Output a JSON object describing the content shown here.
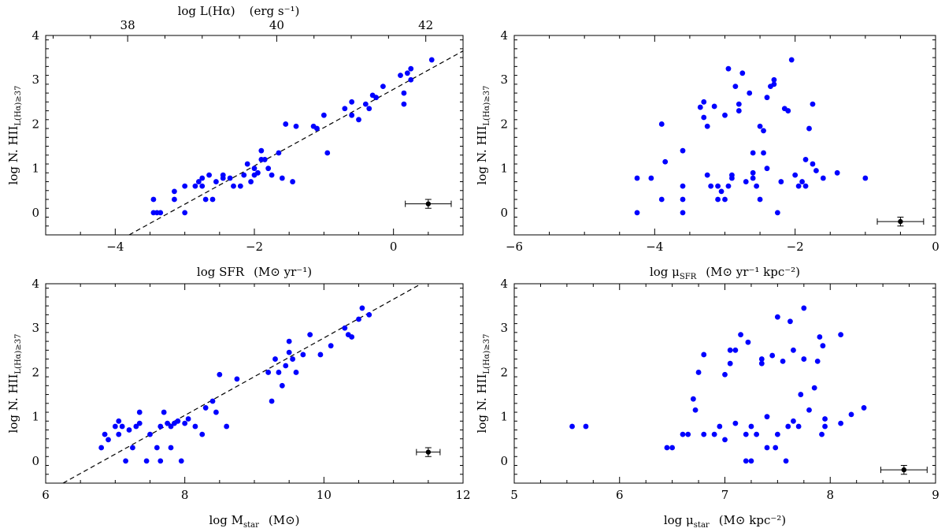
{
  "chart_data": [
    {
      "type": "scatter",
      "xlabel": "log SFR",
      "xlabel_unit": "(M⊙ yr⁻¹)",
      "ylabel": "log N. HII",
      "ylabel_sub": "L(Hα)≥37",
      "xlim": [
        -5,
        1
      ],
      "ylim": [
        -0.5,
        4
      ],
      "xticks": [
        -4,
        -2,
        0
      ],
      "yticks": [
        0,
        1,
        2,
        3,
        4
      ],
      "top_axis": {
        "label": "log L(Hα)",
        "unit": "(erg s⁻¹)",
        "lim": [
          36.9,
          42.5
        ],
        "ticks": [
          38,
          40,
          42
        ]
      },
      "fit_line": {
        "x": [
          -3.8,
          1
        ],
        "y": [
          -0.5,
          3.65
        ]
      },
      "error_bar": {
        "x": 0.5,
        "y": 0.2,
        "xerr": 0.33,
        "yerr": 0.1
      },
      "points": [
        [
          -3.45,
          0
        ],
        [
          -3.4,
          0
        ],
        [
          -3.35,
          0
        ],
        [
          -3.45,
          0.3
        ],
        [
          -3.15,
          0.3
        ],
        [
          -3.15,
          0.48
        ],
        [
          -3.0,
          0
        ],
        [
          -3.0,
          0.6
        ],
        [
          -2.85,
          0.6
        ],
        [
          -2.8,
          0.7
        ],
        [
          -2.75,
          0.6
        ],
        [
          -2.7,
          0.3
        ],
        [
          -2.75,
          0.78
        ],
        [
          -2.65,
          0.85
        ],
        [
          -2.6,
          0.3
        ],
        [
          -2.55,
          0.7
        ],
        [
          -2.45,
          0.78
        ],
        [
          -2.45,
          0.85
        ],
        [
          -2.35,
          0.78
        ],
        [
          -2.3,
          0.6
        ],
        [
          -2.2,
          0.6
        ],
        [
          -2.15,
          0.85
        ],
        [
          -2.1,
          1.1
        ],
        [
          -2.05,
          0.7
        ],
        [
          -2.0,
          0.85
        ],
        [
          -2.0,
          1.0
        ],
        [
          -1.95,
          0.9
        ],
        [
          -1.9,
          1.2
        ],
        [
          -1.9,
          1.4
        ],
        [
          -1.85,
          1.2
        ],
        [
          -1.8,
          1.0
        ],
        [
          -1.75,
          0.85
        ],
        [
          -1.65,
          1.35
        ],
        [
          -1.6,
          0.78
        ],
        [
          -1.55,
          2.0
        ],
        [
          -1.45,
          0.7
        ],
        [
          -1.4,
          1.95
        ],
        [
          -1.15,
          1.95
        ],
        [
          -1.1,
          1.9
        ],
        [
          -1.0,
          2.2
        ],
        [
          -0.95,
          1.35
        ],
        [
          -0.7,
          2.35
        ],
        [
          -0.6,
          2.5
        ],
        [
          -0.6,
          2.2
        ],
        [
          -0.5,
          2.1
        ],
        [
          -0.4,
          2.45
        ],
        [
          -0.35,
          2.35
        ],
        [
          -0.3,
          2.65
        ],
        [
          -0.25,
          2.6
        ],
        [
          -0.15,
          2.85
        ],
        [
          0.1,
          3.1
        ],
        [
          0.15,
          2.45
        ],
        [
          0.15,
          2.7
        ],
        [
          0.2,
          3.15
        ],
        [
          0.25,
          3.0
        ],
        [
          0.25,
          3.25
        ],
        [
          0.55,
          3.45
        ]
      ]
    },
    {
      "type": "scatter",
      "xlabel": "log μ",
      "xlabel_sub": "SFR",
      "xlabel_unit": "(M⊙ yr⁻¹ kpc⁻²)",
      "ylabel": "log N. HII",
      "ylabel_sub": "L(Hα)≥37",
      "xlim": [
        -6,
        0
      ],
      "ylim": [
        -0.5,
        4
      ],
      "xticks": [
        -6,
        -4,
        -2,
        0
      ],
      "yticks": [
        0,
        1,
        2,
        3,
        4
      ],
      "error_bar": {
        "x": -0.5,
        "y": -0.2,
        "xerr": 0.33,
        "yerr": 0.1
      },
      "points": [
        [
          -4.25,
          0.78
        ],
        [
          -4.25,
          0
        ],
        [
          -4.05,
          0.78
        ],
        [
          -3.9,
          0.3
        ],
        [
          -3.9,
          2.0
        ],
        [
          -3.85,
          1.15
        ],
        [
          -3.6,
          1.4
        ],
        [
          -3.6,
          0.6
        ],
        [
          -3.6,
          0.3
        ],
        [
          -3.6,
          0
        ],
        [
          -3.35,
          2.38
        ],
        [
          -3.3,
          2.15
        ],
        [
          -3.3,
          2.5
        ],
        [
          -3.25,
          0.85
        ],
        [
          -3.25,
          1.95
        ],
        [
          -3.2,
          0.6
        ],
        [
          -3.15,
          2.4
        ],
        [
          -3.1,
          0.6
        ],
        [
          -3.1,
          0.3
        ],
        [
          -3.05,
          0.48
        ],
        [
          -3.0,
          2.2
        ],
        [
          -3.0,
          0.3
        ],
        [
          -2.95,
          3.25
        ],
        [
          -2.95,
          0.6
        ],
        [
          -2.9,
          0.78
        ],
        [
          -2.9,
          0.85
        ],
        [
          -2.85,
          2.85
        ],
        [
          -2.8,
          2.3
        ],
        [
          -2.8,
          2.45
        ],
        [
          -2.75,
          3.15
        ],
        [
          -2.7,
          0.7
        ],
        [
          -2.65,
          2.7
        ],
        [
          -2.6,
          0.78
        ],
        [
          -2.6,
          0.9
        ],
        [
          -2.6,
          1.35
        ],
        [
          -2.55,
          0.6
        ],
        [
          -2.5,
          0.3
        ],
        [
          -2.5,
          1.95
        ],
        [
          -2.45,
          1.85
        ],
        [
          -2.45,
          1.35
        ],
        [
          -2.4,
          2.6
        ],
        [
          -2.4,
          1.0
        ],
        [
          -2.35,
          2.85
        ],
        [
          -2.3,
          3.0
        ],
        [
          -2.3,
          2.9
        ],
        [
          -2.25,
          0
        ],
        [
          -2.2,
          0.7
        ],
        [
          -2.15,
          2.35
        ],
        [
          -2.1,
          2.3
        ],
        [
          -2.05,
          3.45
        ],
        [
          -2.0,
          0.85
        ],
        [
          -1.95,
          0.6
        ],
        [
          -1.9,
          0.7
        ],
        [
          -1.85,
          0.6
        ],
        [
          -1.85,
          1.2
        ],
        [
          -1.8,
          1.9
        ],
        [
          -1.75,
          2.45
        ],
        [
          -1.75,
          1.1
        ],
        [
          -1.7,
          0.95
        ],
        [
          -1.6,
          0.78
        ],
        [
          -1.4,
          0.9
        ],
        [
          -1.0,
          0.78
        ]
      ]
    },
    {
      "type": "scatter",
      "xlabel": "log M",
      "xlabel_sub": "star",
      "xlabel_unit": "(M⊙)",
      "ylabel": "log N. HII",
      "ylabel_sub": "L(Hα)≥37",
      "xlim": [
        6,
        12
      ],
      "ylim": [
        -0.5,
        4
      ],
      "xticks": [
        6,
        8,
        10,
        12
      ],
      "yticks": [
        0,
        1,
        2,
        3,
        4
      ],
      "fit_line": {
        "x": [
          6.25,
          11.4
        ],
        "y": [
          -0.5,
          4.0
        ]
      },
      "error_bar": {
        "x": 11.5,
        "y": 0.2,
        "xerr": 0.17,
        "yerr": 0.1
      },
      "points": [
        [
          6.8,
          0.3
        ],
        [
          6.85,
          0.6
        ],
        [
          6.9,
          0.48
        ],
        [
          7.0,
          0.78
        ],
        [
          7.05,
          0.6
        ],
        [
          7.05,
          0.9
        ],
        [
          7.1,
          0.78
        ],
        [
          7.15,
          0
        ],
        [
          7.2,
          0.7
        ],
        [
          7.25,
          0.3
        ],
        [
          7.3,
          0.78
        ],
        [
          7.35,
          1.1
        ],
        [
          7.35,
          0.85
        ],
        [
          7.45,
          0
        ],
        [
          7.5,
          0.6
        ],
        [
          7.6,
          0.3
        ],
        [
          7.65,
          0.78
        ],
        [
          7.65,
          0
        ],
        [
          7.7,
          1.1
        ],
        [
          7.75,
          0.85
        ],
        [
          7.8,
          0.78
        ],
        [
          7.8,
          0.3
        ],
        [
          7.85,
          0.85
        ],
        [
          7.9,
          0.9
        ],
        [
          7.95,
          0
        ],
        [
          8.0,
          0.85
        ],
        [
          8.05,
          0.95
        ],
        [
          8.15,
          0.78
        ],
        [
          8.25,
          0.6
        ],
        [
          8.3,
          1.2
        ],
        [
          8.4,
          1.35
        ],
        [
          8.45,
          1.1
        ],
        [
          8.5,
          1.95
        ],
        [
          8.6,
          0.78
        ],
        [
          8.75,
          1.85
        ],
        [
          9.2,
          2.0
        ],
        [
          9.25,
          1.35
        ],
        [
          9.3,
          2.3
        ],
        [
          9.35,
          2.0
        ],
        [
          9.4,
          1.7
        ],
        [
          9.45,
          2.15
        ],
        [
          9.5,
          2.45
        ],
        [
          9.5,
          2.7
        ],
        [
          9.55,
          2.3
        ],
        [
          9.6,
          2.0
        ],
        [
          9.7,
          2.4
        ],
        [
          9.8,
          2.85
        ],
        [
          9.95,
          2.4
        ],
        [
          10.1,
          2.6
        ],
        [
          10.3,
          3.0
        ],
        [
          10.35,
          2.85
        ],
        [
          10.4,
          2.8
        ],
        [
          10.5,
          3.2
        ],
        [
          10.55,
          3.45
        ],
        [
          10.65,
          3.3
        ]
      ]
    },
    {
      "type": "scatter",
      "xlabel": "log μ",
      "xlabel_sub": "star",
      "xlabel_unit": "(M⊙ kpc⁻²)",
      "ylabel": "log N. HII",
      "ylabel_sub": "L(Hα)≥37",
      "xlim": [
        5,
        9
      ],
      "ylim": [
        -0.5,
        4
      ],
      "xticks": [
        5,
        6,
        7,
        8,
        9
      ],
      "yticks": [
        0,
        1,
        2,
        3,
        4
      ],
      "error_bar": {
        "x": 8.7,
        "y": -0.2,
        "xerr": 0.22,
        "yerr": 0.1
      },
      "points": [
        [
          5.55,
          0.78
        ],
        [
          5.68,
          0.78
        ],
        [
          6.45,
          0.3
        ],
        [
          6.5,
          0.3
        ],
        [
          6.6,
          0.6
        ],
        [
          6.65,
          0.6
        ],
        [
          6.7,
          1.4
        ],
        [
          6.72,
          1.15
        ],
        [
          6.75,
          2.0
        ],
        [
          6.8,
          0.6
        ],
        [
          6.8,
          2.4
        ],
        [
          6.9,
          0.6
        ],
        [
          6.95,
          0.78
        ],
        [
          7.0,
          0.48
        ],
        [
          7.0,
          1.95
        ],
        [
          7.05,
          2.5
        ],
        [
          7.05,
          2.2
        ],
        [
          7.1,
          0.85
        ],
        [
          7.1,
          2.5
        ],
        [
          7.15,
          2.85
        ],
        [
          7.2,
          0
        ],
        [
          7.2,
          0.6
        ],
        [
          7.22,
          2.68
        ],
        [
          7.25,
          0.78
        ],
        [
          7.25,
          0
        ],
        [
          7.3,
          0.6
        ],
        [
          7.35,
          2.3
        ],
        [
          7.35,
          2.2
        ],
        [
          7.4,
          1.0
        ],
        [
          7.4,
          0.3
        ],
        [
          7.45,
          2.38
        ],
        [
          7.48,
          0.3
        ],
        [
          7.5,
          0.6
        ],
        [
          7.5,
          3.25
        ],
        [
          7.55,
          2.25
        ],
        [
          7.58,
          0
        ],
        [
          7.6,
          0.78
        ],
        [
          7.62,
          3.15
        ],
        [
          7.65,
          2.5
        ],
        [
          7.65,
          0.9
        ],
        [
          7.7,
          0.78
        ],
        [
          7.72,
          1.5
        ],
        [
          7.75,
          3.45
        ],
        [
          7.75,
          2.3
        ],
        [
          7.8,
          1.15
        ],
        [
          7.85,
          1.65
        ],
        [
          7.88,
          2.25
        ],
        [
          7.9,
          2.8
        ],
        [
          7.92,
          0.6
        ],
        [
          7.93,
          2.6
        ],
        [
          7.95,
          0.78
        ],
        [
          7.95,
          0.95
        ],
        [
          8.1,
          0.85
        ],
        [
          8.1,
          2.85
        ],
        [
          8.2,
          1.05
        ],
        [
          8.32,
          1.2
        ]
      ]
    }
  ]
}
